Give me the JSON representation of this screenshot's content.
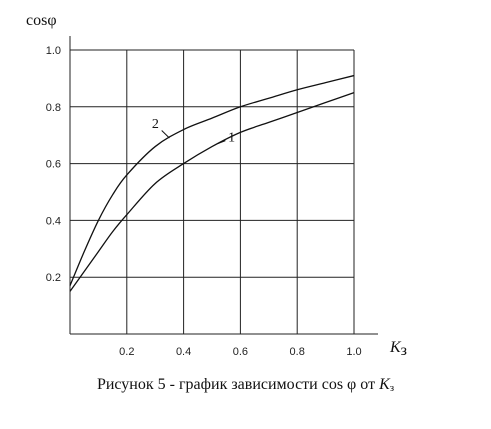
{
  "chart_data": {
    "type": "line",
    "ylabel": "cosφ",
    "xlabel": "К",
    "xlabel_sub": "з",
    "xlim": [
      0,
      1.0
    ],
    "ylim": [
      0,
      1.0
    ],
    "x_ticks": [
      "0.2",
      "0.4",
      "0.6",
      "0.8",
      "1.0"
    ],
    "y_ticks": [
      "0.2",
      "0.4",
      "0.6",
      "0.8",
      "1.0"
    ],
    "grid": true,
    "series": [
      {
        "name": "1",
        "x": [
          0.0,
          0.05,
          0.1,
          0.15,
          0.2,
          0.3,
          0.4,
          0.5,
          0.6,
          0.7,
          0.8,
          0.9,
          1.0
        ],
        "y": [
          0.15,
          0.22,
          0.29,
          0.36,
          0.42,
          0.53,
          0.6,
          0.66,
          0.71,
          0.745,
          0.78,
          0.815,
          0.85
        ]
      },
      {
        "name": "2",
        "x": [
          0.0,
          0.05,
          0.1,
          0.15,
          0.2,
          0.3,
          0.4,
          0.5,
          0.6,
          0.7,
          0.8,
          0.9,
          1.0
        ],
        "y": [
          0.17,
          0.29,
          0.4,
          0.49,
          0.56,
          0.66,
          0.72,
          0.76,
          0.8,
          0.83,
          0.86,
          0.885,
          0.91
        ]
      }
    ]
  },
  "caption": {
    "prefix": "Рисунок 5 - график зависимости ",
    "cos": "cos φ",
    "middle": " от ",
    "k": "К",
    "k_sub": "з"
  }
}
